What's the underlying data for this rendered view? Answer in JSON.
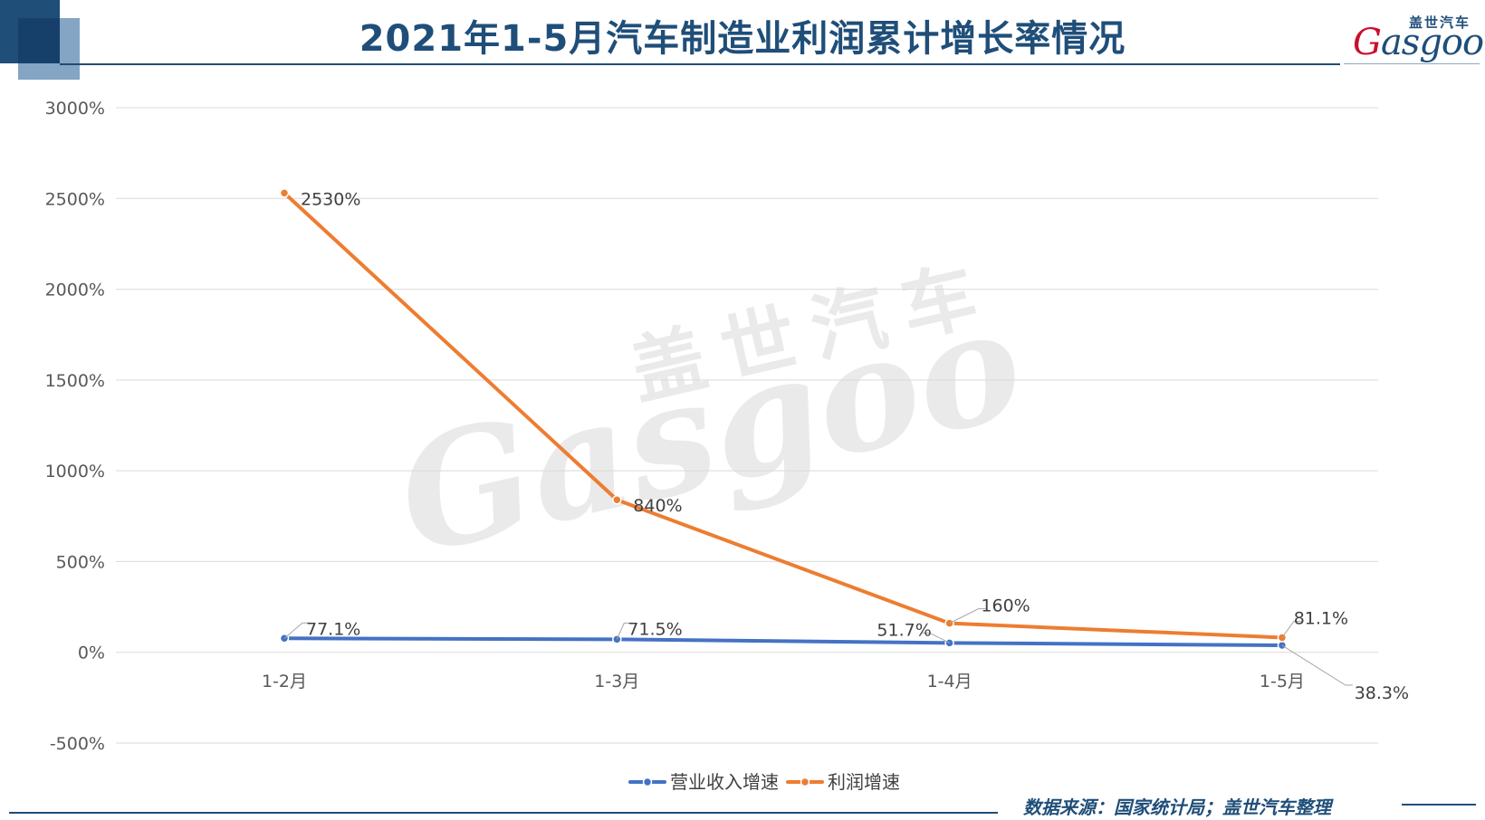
{
  "header": {
    "title": "2021年1-5月汽车制造业利润累计增长率情况"
  },
  "logo": {
    "cn_text": "盖世汽车",
    "en_text": "asgoo",
    "en_initial": "G"
  },
  "watermark": {
    "cn_text": "盖世汽车",
    "en_text": "Gasgoo"
  },
  "footer": {
    "source": "数据来源：国家统计局；盖世汽车整理"
  },
  "chart_data": {
    "type": "line",
    "title": "2021年1-5月汽车制造业利润累计增长率情况",
    "xlabel": "",
    "ylabel": "",
    "categories": [
      "1-2月",
      "1-3月",
      "1-4月",
      "1-5月"
    ],
    "ylim": [
      -500,
      3000
    ],
    "yticks": [
      -500,
      0,
      500,
      1000,
      1500,
      2000,
      2500,
      3000
    ],
    "ytick_labels": [
      "-500%",
      "0%",
      "500%",
      "1000%",
      "1500%",
      "2000%",
      "2500%",
      "3000%"
    ],
    "grid": true,
    "legend": "bottom-center",
    "series": [
      {
        "name": "营业收入增速",
        "color": "#4472c4",
        "values": [
          77.1,
          71.5,
          51.7,
          38.3
        ],
        "labels": [
          "77.1%",
          "71.5%",
          "51.7%",
          "38.3%"
        ]
      },
      {
        "name": "利润增速",
        "color": "#ed7d31",
        "values": [
          2530,
          840,
          160,
          81.1
        ],
        "labels": [
          "2530%",
          "840%",
          "160%",
          "81.1%"
        ]
      }
    ]
  }
}
